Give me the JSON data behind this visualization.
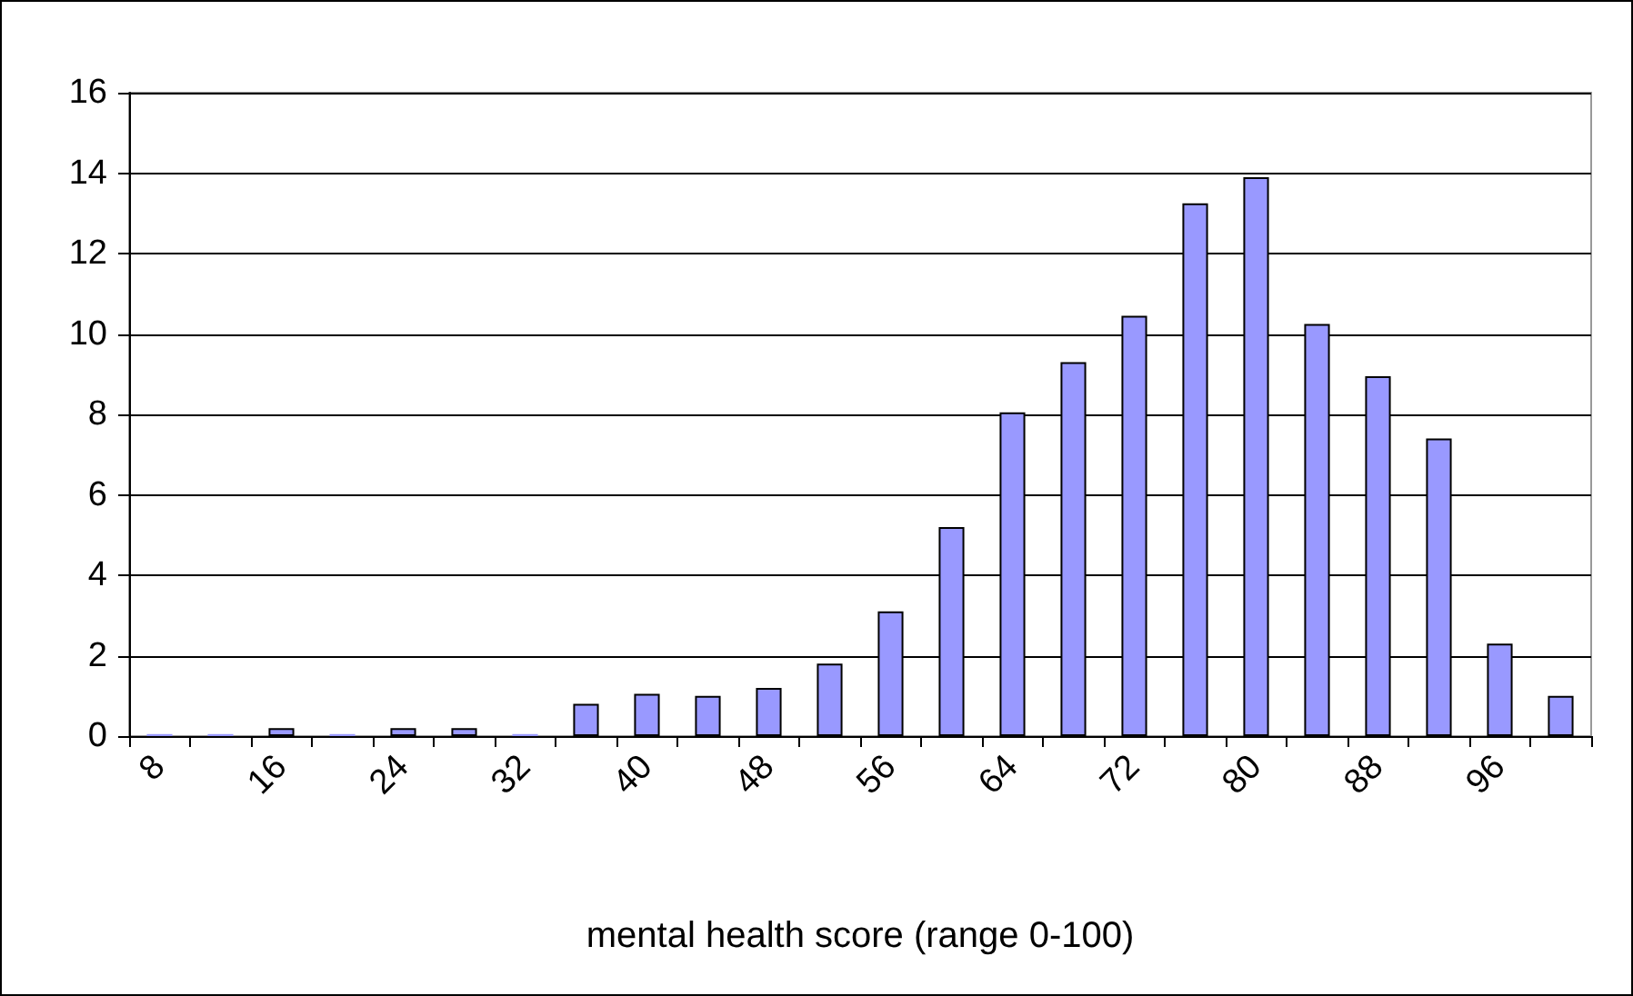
{
  "chart_data": {
    "type": "bar",
    "xlabel": "mental health score (range 0-100)",
    "categories": [
      "8",
      null,
      "16",
      null,
      "24",
      null,
      "32",
      null,
      "40",
      null,
      "48",
      null,
      "56",
      null,
      "64",
      null,
      "72",
      null,
      "80",
      null,
      "88",
      null,
      "96",
      null
    ],
    "values": [
      0.05,
      0.05,
      0.2,
      0.05,
      0.2,
      0.2,
      0.05,
      0.8,
      1.05,
      1.0,
      1.2,
      1.8,
      3.1,
      5.2,
      8.05,
      9.3,
      10.45,
      13.25,
      13.9,
      10.25,
      8.95,
      7.4,
      2.3,
      1.0
    ],
    "color": "#9999ff",
    "ylim": [
      0,
      16
    ],
    "yticks": [
      0,
      2,
      4,
      6,
      8,
      10,
      12,
      14,
      16
    ],
    "grid": "y"
  }
}
